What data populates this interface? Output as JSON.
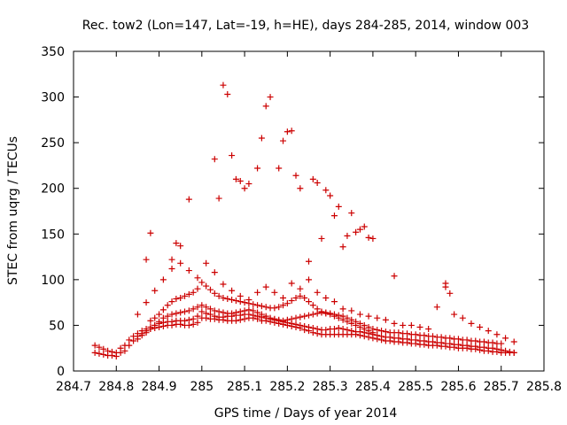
{
  "chart_data": {
    "type": "scatter",
    "title": "Rec. tow2 (Lon=147, Lat=-19, h=HE), days 284-285, 2014, window 003",
    "xlabel": "GPS time / Days of year 2014",
    "ylabel": "STEC from uqrg / TECUs",
    "xlim": [
      284.7,
      285.8
    ],
    "ylim": [
      0,
      350
    ],
    "xticks": [
      284.7,
      284.8,
      284.9,
      285,
      285.1,
      285.2,
      285.3,
      285.4,
      285.5,
      285.6,
      285.7,
      285.8
    ],
    "xtick_labels": [
      "284.7",
      "284.8",
      "284.9",
      "285",
      "285.1",
      "285.2",
      "285.3",
      "285.4",
      "285.5",
      "285.6",
      "285.7",
      "285.8"
    ],
    "yticks": [
      0,
      50,
      100,
      150,
      200,
      250,
      300,
      350
    ],
    "ytick_labels": [
      "0",
      "50",
      "100",
      "150",
      "200",
      "250",
      "300",
      "350"
    ],
    "grid": false,
    "marker": "plus",
    "color": "#cc0000",
    "series": [
      {
        "name": "",
        "x": [
          284.75,
          284.76,
          284.77,
          284.78,
          284.79,
          284.8,
          284.81,
          284.82,
          284.83,
          284.84,
          284.85,
          284.86,
          284.87,
          284.88,
          284.89,
          284.9,
          284.91,
          284.92,
          284.93,
          284.94,
          284.95,
          284.96,
          284.97,
          284.98,
          284.99,
          285.0,
          285.01,
          285.02,
          285.03,
          285.04,
          285.05,
          285.06,
          285.07,
          285.08,
          285.09,
          285.1,
          285.11,
          285.12,
          285.13,
          285.14,
          285.15,
          285.16,
          285.17,
          285.18,
          285.19,
          285.2,
          285.21,
          285.22,
          285.23,
          285.24,
          285.25,
          285.26,
          285.27,
          285.28,
          285.29,
          285.3,
          285.31,
          285.32,
          285.33,
          285.34,
          285.35,
          285.36,
          285.37,
          285.38,
          285.39,
          285.4,
          285.41,
          285.42,
          285.43,
          285.44,
          285.45,
          285.46,
          285.47,
          285.48,
          285.49,
          285.5,
          285.51,
          285.52,
          285.53,
          285.54,
          285.55,
          285.56,
          285.57,
          285.58,
          285.59,
          285.6,
          285.61,
          285.62,
          285.63,
          285.64,
          285.65,
          285.66,
          285.67,
          285.68,
          285.69,
          285.7,
          285.71,
          285.72,
          285.73
        ],
        "y": [
          20,
          19,
          18,
          17,
          17,
          16,
          20,
          22,
          28,
          33,
          38,
          41,
          44,
          46,
          47,
          48,
          49,
          50,
          50,
          51,
          51,
          50,
          50,
          51,
          53,
          58,
          58,
          57,
          57,
          56,
          56,
          55,
          55,
          55,
          56,
          57,
          58,
          58,
          57,
          55,
          55,
          54,
          53,
          52,
          51,
          50,
          49,
          48,
          47,
          45,
          44,
          42,
          41,
          40,
          40,
          40,
          40,
          40,
          40,
          40,
          40,
          40,
          39,
          38,
          37,
          36,
          35,
          34,
          33,
          33,
          32,
          32,
          31,
          31,
          30,
          30,
          29,
          29,
          28,
          28,
          28,
          27,
          27,
          26,
          26,
          25,
          25,
          25,
          24,
          24,
          23,
          22,
          22,
          21,
          21,
          20,
          20,
          20,
          20
        ]
      },
      {
        "name": "",
        "x": [
          284.75,
          284.76,
          284.77,
          284.78,
          284.79,
          284.8,
          284.81,
          284.82,
          284.83,
          284.84,
          284.85,
          284.86,
          284.87,
          284.88,
          284.89,
          284.9,
          284.91,
          284.92,
          284.93,
          284.94,
          284.95,
          284.96,
          284.97,
          284.98,
          284.99,
          285.0,
          285.01,
          285.02,
          285.03,
          285.04,
          285.05,
          285.06,
          285.07,
          285.08,
          285.09,
          285.1,
          285.11,
          285.12,
          285.13,
          285.14,
          285.15,
          285.16,
          285.17,
          285.18,
          285.19,
          285.2,
          285.21,
          285.22,
          285.23,
          285.24,
          285.25,
          285.26,
          285.27,
          285.28,
          285.29,
          285.3,
          285.31,
          285.32,
          285.33,
          285.34,
          285.35,
          285.36,
          285.37,
          285.38,
          285.39,
          285.4,
          285.41,
          285.42,
          285.43,
          285.44,
          285.45,
          285.46,
          285.47,
          285.48,
          285.49,
          285.5,
          285.51,
          285.52,
          285.53,
          285.54,
          285.55,
          285.56,
          285.57,
          285.58,
          285.59,
          285.6,
          285.61,
          285.62,
          285.63,
          285.64,
          285.65,
          285.66,
          285.67,
          285.68,
          285.69,
          285.7,
          285.71,
          285.72,
          285.73
        ],
        "y": [
          28,
          26,
          24,
          22,
          21,
          20,
          25,
          28,
          34,
          38,
          41,
          44,
          46,
          48,
          50,
          52,
          53,
          54,
          54,
          55,
          55,
          55,
          56,
          57,
          60,
          65,
          63,
          62,
          60,
          59,
          59,
          60,
          60,
          61,
          61,
          62,
          62,
          61,
          60,
          59,
          58,
          57,
          56,
          55,
          54,
          53,
          52,
          51,
          50,
          49,
          48,
          47,
          46,
          45,
          45,
          46,
          46,
          47,
          46,
          45,
          44,
          43,
          43,
          42,
          41,
          40,
          39,
          38,
          37,
          37,
          36,
          36,
          35,
          35,
          34,
          34,
          33,
          33,
          32,
          32,
          31,
          31,
          30,
          30,
          29,
          29,
          28,
          28,
          27,
          27,
          26,
          26,
          25,
          25,
          24,
          23,
          22,
          21,
          20
        ]
      },
      {
        "name": "",
        "x": [
          284.85,
          284.86,
          284.87,
          284.88,
          284.89,
          284.9,
          284.91,
          284.92,
          284.93,
          284.94,
          284.95,
          284.96,
          284.97,
          284.98,
          284.99,
          285.0,
          285.01,
          285.02,
          285.03,
          285.04,
          285.05,
          285.06,
          285.07,
          285.08,
          285.09,
          285.1,
          285.11,
          285.12,
          285.13,
          285.14,
          285.15,
          285.16,
          285.17,
          285.18,
          285.19,
          285.2,
          285.21,
          285.22,
          285.23,
          285.24,
          285.25,
          285.26,
          285.27,
          285.28,
          285.29,
          285.3,
          285.31,
          285.32,
          285.33,
          285.34,
          285.35,
          285.36,
          285.37,
          285.38,
          285.39,
          285.4,
          285.41,
          285.42,
          285.43,
          285.44,
          285.45,
          285.46,
          285.47,
          285.48,
          285.49,
          285.5,
          285.51,
          285.52,
          285.53,
          285.54,
          285.55,
          285.56,
          285.57,
          285.58,
          285.59,
          285.6,
          285.61,
          285.62,
          285.63,
          285.64,
          285.65,
          285.66,
          285.67,
          285.68,
          285.69,
          285.7
        ],
        "y": [
          35,
          39,
          42,
          46,
          50,
          54,
          58,
          60,
          62,
          63,
          64,
          65,
          66,
          68,
          70,
          72,
          70,
          68,
          66,
          65,
          64,
          63,
          63,
          64,
          65,
          66,
          67,
          66,
          64,
          62,
          60,
          58,
          57,
          56,
          55,
          56,
          57,
          58,
          59,
          60,
          61,
          62,
          63,
          64,
          64,
          63,
          62,
          61,
          60,
          58,
          56,
          54,
          52,
          50,
          48,
          46,
          45,
          44,
          43,
          42,
          42,
          42,
          41,
          41,
          40,
          40,
          39,
          39,
          38,
          38,
          37,
          37,
          36,
          36,
          35,
          35,
          34,
          34,
          33,
          33,
          32,
          32,
          31,
          31,
          30,
          30
        ]
      },
      {
        "name": "",
        "x": [
          284.88,
          284.89,
          284.9,
          284.91,
          284.92,
          284.93,
          284.94,
          284.95,
          284.96,
          284.97,
          284.98,
          284.99,
          285.0,
          285.01,
          285.02,
          285.03,
          285.04,
          285.05,
          285.06,
          285.07,
          285.08,
          285.09,
          285.1,
          285.11,
          285.12,
          285.13,
          285.14,
          285.15,
          285.16,
          285.17,
          285.18,
          285.19,
          285.2,
          285.21,
          285.22,
          285.23,
          285.24,
          285.25,
          285.26,
          285.27,
          285.28,
          285.29,
          285.3,
          285.31,
          285.32,
          285.33,
          285.34,
          285.35,
          285.36,
          285.37,
          285.38,
          285.39,
          285.4
        ],
        "y": [
          55,
          58,
          62,
          67,
          72,
          76,
          79,
          80,
          82,
          84,
          86,
          90,
          97,
          93,
          89,
          85,
          82,
          80,
          79,
          78,
          77,
          76,
          75,
          74,
          73,
          72,
          71,
          70,
          69,
          69,
          70,
          72,
          74,
          77,
          80,
          82,
          80,
          76,
          72,
          68,
          65,
          63,
          62,
          60,
          58,
          56,
          54,
          52,
          50,
          48,
          46,
          44,
          42
        ]
      },
      {
        "name": "",
        "x": [
          284.85,
          284.87,
          284.89,
          284.91,
          284.93,
          284.95,
          284.97,
          284.99,
          285.01,
          285.03,
          285.05,
          285.07,
          285.09,
          285.11,
          285.13,
          285.15,
          285.17,
          285.19,
          285.21,
          285.23,
          285.25,
          285.27,
          285.29,
          285.31,
          285.33,
          285.35,
          285.37,
          285.39,
          285.41,
          285.43,
          285.45,
          285.47,
          285.49,
          285.51,
          285.53,
          285.55,
          285.57,
          285.59,
          285.61,
          285.63,
          285.65,
          285.67,
          285.69,
          285.71,
          285.73
        ],
        "y": [
          62,
          75,
          88,
          100,
          112,
          118,
          110,
          102,
          118,
          108,
          95,
          88,
          82,
          78,
          86,
          92,
          86,
          80,
          96,
          90,
          100,
          86,
          80,
          76,
          68,
          66,
          62,
          60,
          58,
          56,
          52,
          50,
          50,
          48,
          46,
          70,
          92,
          62,
          58,
          52,
          48,
          44,
          40,
          36,
          32
        ]
      },
      {
        "name": "",
        "x": [
          284.87,
          284.88,
          284.93,
          284.94,
          284.95,
          284.97,
          285.03,
          285.04,
          285.05,
          285.06,
          285.07,
          285.08,
          285.09,
          285.1,
          285.11,
          285.13,
          285.14,
          285.15,
          285.16,
          285.18,
          285.19,
          285.2,
          285.21,
          285.22,
          285.23,
          285.25,
          285.26,
          285.27,
          285.28,
          285.29,
          285.3,
          285.31,
          285.32,
          285.33,
          285.34,
          285.35,
          285.36,
          285.37,
          285.38,
          285.39,
          285.4,
          285.45,
          285.57,
          285.58
        ],
        "y": [
          122,
          151,
          122,
          140,
          137,
          188,
          232,
          189,
          313,
          303,
          236,
          210,
          208,
          200,
          205,
          222,
          255,
          290,
          300,
          222,
          252,
          262,
          263,
          214,
          200,
          120,
          210,
          206,
          145,
          198,
          192,
          170,
          180,
          136,
          148,
          173,
          152,
          155,
          158,
          146,
          145,
          104,
          96,
          85
        ]
      }
    ]
  }
}
